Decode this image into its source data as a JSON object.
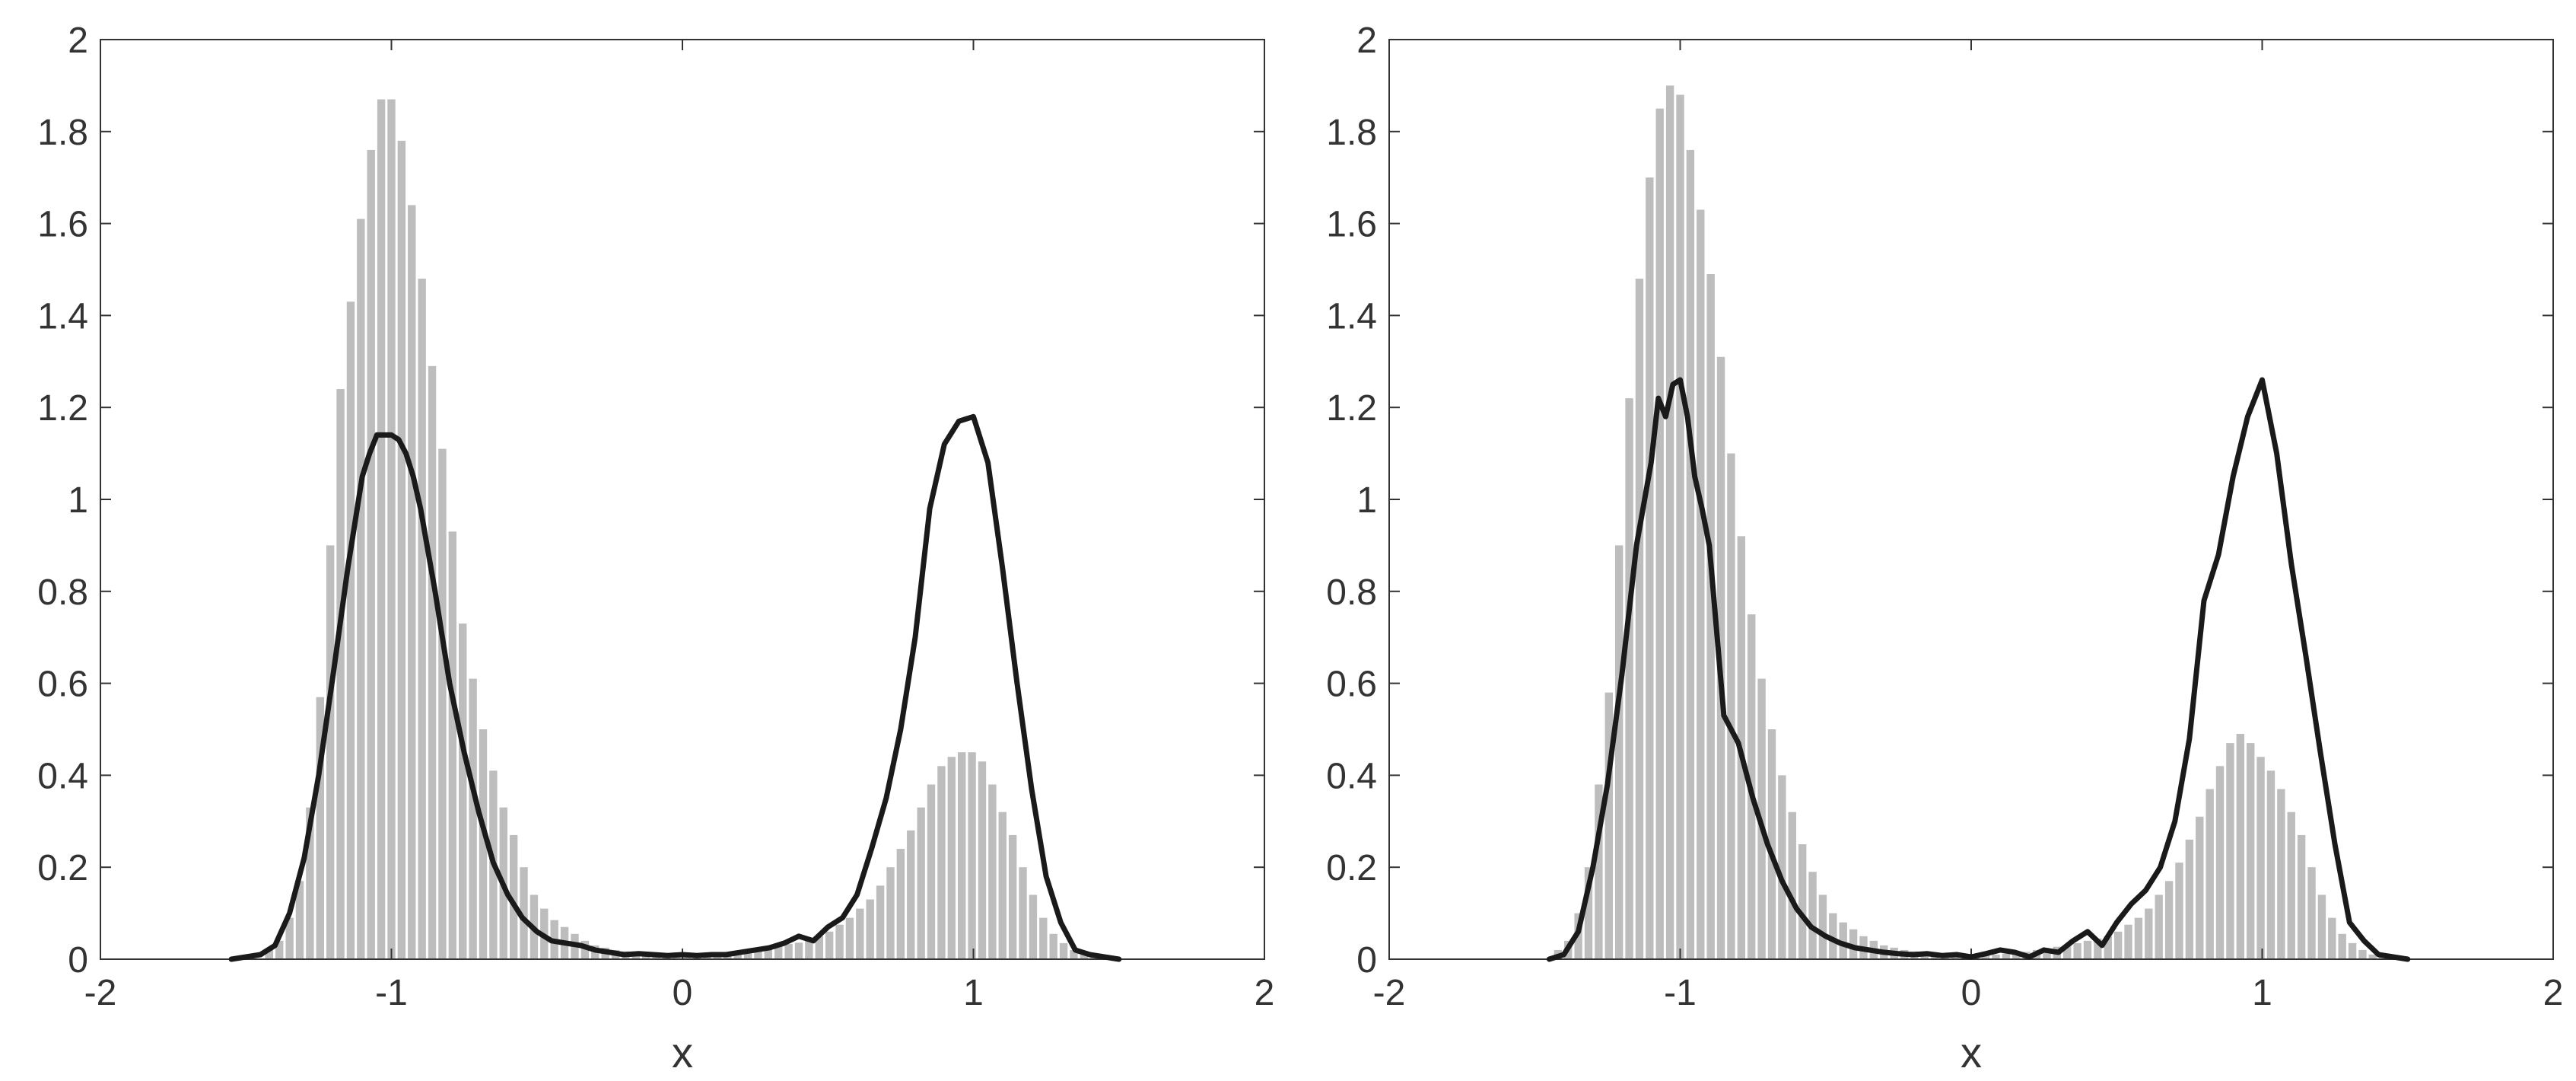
{
  "chart_data": [
    {
      "type": "bar",
      "overlay": "line",
      "xlabel": "x",
      "ylabel": "",
      "xlim": [
        -2,
        2
      ],
      "ylim": [
        0,
        2
      ],
      "xticks": [
        "-2",
        "-1",
        "0",
        "1",
        "2"
      ],
      "yticks": [
        "0",
        "0.2",
        "0.4",
        "0.6",
        "0.8",
        "1",
        "1.2",
        "1.4",
        "1.6",
        "1.8",
        "2"
      ],
      "grid": false,
      "colors": {
        "bars": "#bdbdbd",
        "line": "#1a1a1a",
        "axes": "#333333"
      },
      "histogram": {
        "bin_width": 0.035,
        "x": [
          -1.42,
          -1.385,
          -1.35,
          -1.315,
          -1.28,
          -1.245,
          -1.21,
          -1.175,
          -1.14,
          -1.105,
          -1.07,
          -1.035,
          -1.0,
          -0.965,
          -0.93,
          -0.895,
          -0.86,
          -0.825,
          -0.79,
          -0.755,
          -0.72,
          -0.685,
          -0.65,
          -0.615,
          -0.58,
          -0.545,
          -0.51,
          -0.475,
          -0.44,
          -0.405,
          -0.37,
          -0.335,
          -0.3,
          -0.265,
          -0.23,
          -0.195,
          -0.16,
          -0.125,
          -0.09,
          -0.055,
          -0.02,
          0.015,
          0.05,
          0.085,
          0.12,
          0.155,
          0.19,
          0.225,
          0.26,
          0.295,
          0.33,
          0.365,
          0.4,
          0.435,
          0.47,
          0.505,
          0.54,
          0.575,
          0.61,
          0.645,
          0.68,
          0.715,
          0.75,
          0.785,
          0.82,
          0.855,
          0.89,
          0.925,
          0.96,
          0.995,
          1.03,
          1.065,
          1.1,
          1.135,
          1.17,
          1.205,
          1.24,
          1.275,
          1.31,
          1.345,
          1.38,
          1.415
        ],
        "values": [
          0.02,
          0.04,
          0.09,
          0.17,
          0.33,
          0.57,
          0.9,
          1.24,
          1.43,
          1.61,
          1.76,
          1.87,
          1.87,
          1.78,
          1.64,
          1.48,
          1.29,
          1.11,
          0.93,
          0.73,
          0.61,
          0.5,
          0.41,
          0.33,
          0.27,
          0.2,
          0.14,
          0.11,
          0.085,
          0.07,
          0.055,
          0.04,
          0.03,
          0.025,
          0.02,
          0.017,
          0.015,
          0.012,
          0.01,
          0.01,
          0.01,
          0.01,
          0.01,
          0.01,
          0.012,
          0.014,
          0.016,
          0.02,
          0.023,
          0.027,
          0.03,
          0.033,
          0.036,
          0.04,
          0.05,
          0.06,
          0.075,
          0.09,
          0.11,
          0.13,
          0.16,
          0.2,
          0.24,
          0.28,
          0.33,
          0.38,
          0.42,
          0.44,
          0.45,
          0.45,
          0.43,
          0.38,
          0.32,
          0.27,
          0.2,
          0.14,
          0.09,
          0.055,
          0.035,
          0.02,
          0.01,
          0.005
        ]
      },
      "density_line": {
        "x": [
          -1.55,
          -1.5,
          -1.45,
          -1.4,
          -1.35,
          -1.3,
          -1.25,
          -1.2,
          -1.15,
          -1.1,
          -1.075,
          -1.05,
          -1.025,
          -1.0,
          -0.975,
          -0.95,
          -0.925,
          -0.9,
          -0.85,
          -0.8,
          -0.75,
          -0.7,
          -0.65,
          -0.6,
          -0.55,
          -0.5,
          -0.45,
          -0.4,
          -0.35,
          -0.3,
          -0.25,
          -0.2,
          -0.15,
          -0.1,
          -0.05,
          0.0,
          0.05,
          0.1,
          0.15,
          0.2,
          0.25,
          0.3,
          0.35,
          0.4,
          0.45,
          0.5,
          0.55,
          0.6,
          0.65,
          0.7,
          0.75,
          0.8,
          0.85,
          0.9,
          0.95,
          1.0,
          1.05,
          1.1,
          1.15,
          1.2,
          1.25,
          1.3,
          1.35,
          1.4,
          1.45,
          1.5
        ],
        "values": [
          0.0,
          0.005,
          0.01,
          0.03,
          0.1,
          0.22,
          0.4,
          0.62,
          0.85,
          1.05,
          1.1,
          1.14,
          1.14,
          1.14,
          1.13,
          1.1,
          1.05,
          0.98,
          0.8,
          0.6,
          0.45,
          0.32,
          0.21,
          0.14,
          0.09,
          0.06,
          0.04,
          0.035,
          0.03,
          0.02,
          0.015,
          0.01,
          0.012,
          0.01,
          0.008,
          0.01,
          0.008,
          0.01,
          0.01,
          0.015,
          0.02,
          0.025,
          0.035,
          0.05,
          0.04,
          0.07,
          0.09,
          0.14,
          0.24,
          0.35,
          0.5,
          0.7,
          0.98,
          1.12,
          1.17,
          1.18,
          1.08,
          0.85,
          0.6,
          0.37,
          0.18,
          0.08,
          0.02,
          0.01,
          0.005,
          0.0
        ]
      }
    },
    {
      "type": "bar",
      "overlay": "line",
      "xlabel": "x",
      "ylabel": "",
      "xlim": [
        -2,
        2
      ],
      "ylim": [
        0,
        2
      ],
      "xticks": [
        "-2",
        "-1",
        "0",
        "1",
        "2"
      ],
      "yticks": [
        "0",
        "0.2",
        "0.4",
        "0.6",
        "0.8",
        "1",
        "1.2",
        "1.4",
        "1.6",
        "1.8",
        "2"
      ],
      "grid": false,
      "colors": {
        "bars": "#bdbdbd",
        "line": "#1a1a1a",
        "axes": "#333333"
      },
      "histogram": {
        "bin_width": 0.035,
        "x": [
          -1.42,
          -1.385,
          -1.35,
          -1.315,
          -1.28,
          -1.245,
          -1.21,
          -1.175,
          -1.14,
          -1.105,
          -1.07,
          -1.035,
          -1.0,
          -0.965,
          -0.93,
          -0.895,
          -0.86,
          -0.825,
          -0.79,
          -0.755,
          -0.72,
          -0.685,
          -0.65,
          -0.615,
          -0.58,
          -0.545,
          -0.51,
          -0.475,
          -0.44,
          -0.405,
          -0.37,
          -0.335,
          -0.3,
          -0.265,
          -0.23,
          -0.195,
          -0.16,
          -0.125,
          -0.09,
          -0.055,
          -0.02,
          0.015,
          0.05,
          0.085,
          0.12,
          0.155,
          0.19,
          0.225,
          0.26,
          0.295,
          0.33,
          0.365,
          0.4,
          0.435,
          0.47,
          0.505,
          0.54,
          0.575,
          0.61,
          0.645,
          0.68,
          0.715,
          0.75,
          0.785,
          0.82,
          0.855,
          0.89,
          0.925,
          0.96,
          0.995,
          1.03,
          1.065,
          1.1,
          1.135,
          1.17,
          1.205,
          1.24,
          1.275,
          1.31,
          1.345,
          1.38,
          1.415
        ],
        "values": [
          0.02,
          0.04,
          0.1,
          0.2,
          0.38,
          0.58,
          0.9,
          1.22,
          1.48,
          1.7,
          1.85,
          1.9,
          1.88,
          1.76,
          1.63,
          1.49,
          1.31,
          1.1,
          0.92,
          0.75,
          0.61,
          0.5,
          0.4,
          0.32,
          0.25,
          0.19,
          0.14,
          0.1,
          0.08,
          0.065,
          0.05,
          0.04,
          0.03,
          0.025,
          0.02,
          0.017,
          0.015,
          0.012,
          0.01,
          0.01,
          0.01,
          0.01,
          0.01,
          0.01,
          0.012,
          0.014,
          0.016,
          0.02,
          0.023,
          0.027,
          0.03,
          0.035,
          0.04,
          0.045,
          0.05,
          0.06,
          0.075,
          0.09,
          0.11,
          0.14,
          0.17,
          0.21,
          0.26,
          0.31,
          0.37,
          0.42,
          0.47,
          0.49,
          0.47,
          0.44,
          0.41,
          0.37,
          0.32,
          0.27,
          0.2,
          0.14,
          0.09,
          0.055,
          0.035,
          0.02,
          0.01,
          0.005
        ]
      },
      "density_line": {
        "x": [
          -1.45,
          -1.4,
          -1.35,
          -1.3,
          -1.25,
          -1.2,
          -1.15,
          -1.1,
          -1.075,
          -1.05,
          -1.025,
          -1.0,
          -0.975,
          -0.95,
          -0.925,
          -0.9,
          -0.85,
          -0.8,
          -0.75,
          -0.7,
          -0.65,
          -0.6,
          -0.55,
          -0.5,
          -0.45,
          -0.4,
          -0.35,
          -0.3,
          -0.25,
          -0.2,
          -0.15,
          -0.1,
          -0.05,
          0.0,
          0.05,
          0.1,
          0.15,
          0.2,
          0.25,
          0.3,
          0.35,
          0.4,
          0.45,
          0.5,
          0.55,
          0.6,
          0.65,
          0.7,
          0.75,
          0.8,
          0.85,
          0.9,
          0.95,
          1.0,
          1.05,
          1.1,
          1.15,
          1.2,
          1.25,
          1.3,
          1.35,
          1.4,
          1.45,
          1.5
        ],
        "values": [
          0.0,
          0.01,
          0.06,
          0.2,
          0.38,
          0.62,
          0.9,
          1.08,
          1.22,
          1.18,
          1.25,
          1.26,
          1.18,
          1.05,
          0.98,
          0.9,
          0.53,
          0.47,
          0.35,
          0.25,
          0.17,
          0.11,
          0.07,
          0.05,
          0.035,
          0.025,
          0.02,
          0.015,
          0.012,
          0.01,
          0.012,
          0.008,
          0.01,
          0.005,
          0.012,
          0.02,
          0.015,
          0.005,
          0.02,
          0.015,
          0.04,
          0.06,
          0.03,
          0.08,
          0.12,
          0.15,
          0.2,
          0.3,
          0.48,
          0.78,
          0.88,
          1.05,
          1.18,
          1.26,
          1.1,
          0.86,
          0.66,
          0.45,
          0.25,
          0.08,
          0.04,
          0.01,
          0.005,
          0.0
        ]
      }
    }
  ]
}
